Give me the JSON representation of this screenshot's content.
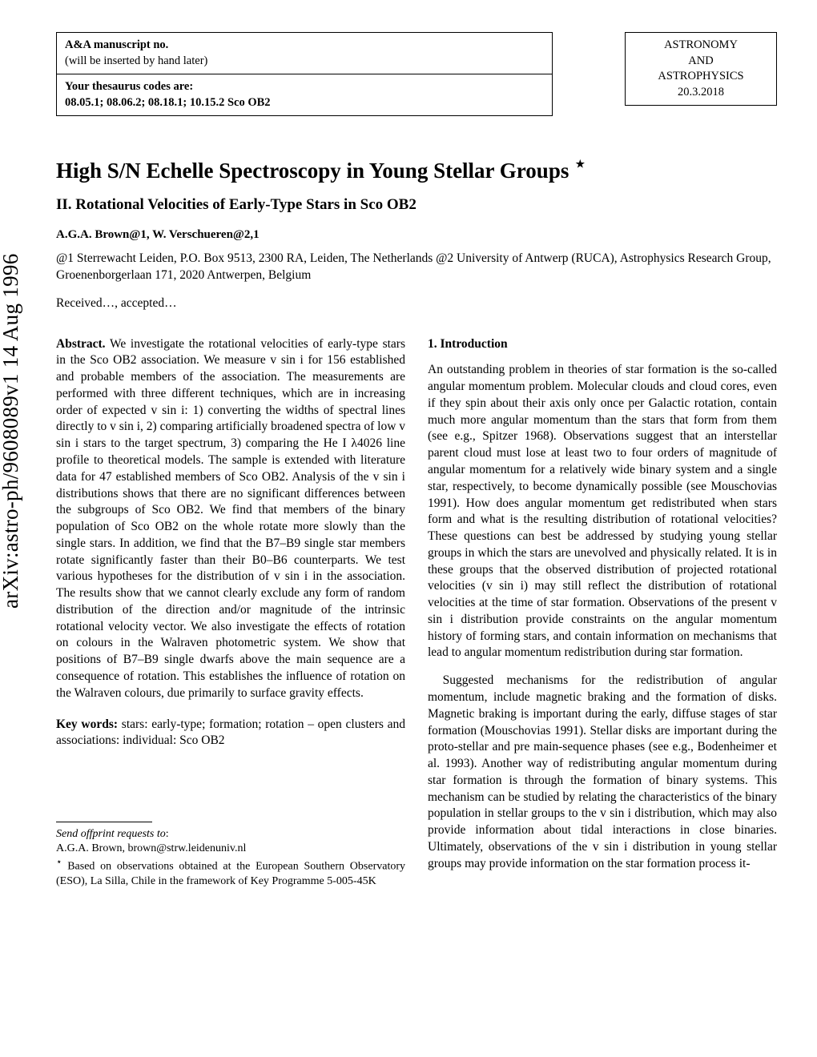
{
  "manuscript_box": {
    "line1": "A&A manuscript no.",
    "line2": "(will be inserted by hand later)",
    "line3": "Your thesaurus codes are:",
    "line4": "08.05.1; 08.06.2; 08.18.1; 10.15.2 Sco OB2"
  },
  "journal_box": {
    "line1": "ASTRONOMY",
    "line2": "AND",
    "line3": "ASTROPHYSICS",
    "date": "20.3.2018"
  },
  "arxiv": "arXiv:astro-ph/9608089v1  14 Aug 1996",
  "title": "High S/N Echelle Spectroscopy in Young Stellar Groups ",
  "title_star": "⋆",
  "subtitle": "II. Rotational Velocities of Early-Type Stars in Sco OB2",
  "authors": "A.G.A. Brown@1, W. Verschueren@2,1",
  "affiliations": "@1 Sterrewacht Leiden, P.O. Box 9513, 2300 RA, Leiden, The Netherlands @2 University of Antwerp (RUCA), Astrophysics Research Group, Groenenborgerlaan 171, 2020 Antwerpen, Belgium",
  "received": "Received…, accepted…",
  "abstract_label": "Abstract.",
  "abstract_text": " We investigate the rotational velocities of early-type stars in the Sco OB2 association. We measure v sin i for 156 established and probable members of the association. The measurements are performed with three different techniques, which are in increasing order of expected v sin i: 1) converting the widths of spectral lines directly to v sin i, 2) comparing artificially broadened spectra of low v sin i stars to the target spectrum, 3) comparing the He I λ4026 line profile to theoretical models. The sample is extended with literature data for 47 established members of Sco OB2. Analysis of the v sin i distributions shows that there are no significant differences between the subgroups of Sco OB2. We find that members of the binary population of Sco OB2 on the whole rotate more slowly than the single stars. In addition, we find that the B7–B9 single star members rotate significantly faster than their B0–B6 counterparts. We test various hypotheses for the distribution of v sin i in the association. The results show that we cannot clearly exclude any form of random distribution of the direction and/or magnitude of the intrinsic rotational velocity vector. We also investigate the effects of rotation on colours in the Walraven photometric system. We show that positions of B7–B9 single dwarfs above the main sequence are a consequence of rotation. This establishes the influence of rotation on the Walraven colours, due primarily to surface gravity effects.",
  "keywords_label": "Key words:",
  "keywords_text": " stars: early-type; formation; rotation – open clusters and associations: individual: Sco OB2",
  "section1_title": "1. Introduction",
  "intro_p1": "An outstanding problem in theories of star formation is the so-called angular momentum problem. Molecular clouds and cloud cores, even if they spin about their axis only once per Galactic rotation, contain much more angular momentum than the stars that form from them (see e.g., Spitzer 1968). Observations suggest that an interstellar parent cloud must lose at least two to four orders of magnitude of angular momentum for a relatively wide binary system and a single star, respectively, to become dynamically possible (see Mouschovias 1991). How does angular momentum get redistributed when stars form and what is the resulting distribution of rotational velocities? These questions can best be addressed by studying young stellar groups in which the stars are unevolved and physically related. It is in these groups that the observed distribution of projected rotational velocities (v sin i) may still reflect the distribution of rotational velocities at the time of star formation. Observations of the present v sin i distribution provide constraints on the angular momentum history of forming stars, and contain information on mechanisms that lead to angular momentum redistribution during star formation.",
  "intro_p2": "Suggested mechanisms for the redistribution of angular momentum, include magnetic braking and the formation of disks. Magnetic braking is important during the early, diffuse stages of star formation (Mouschovias 1991). Stellar disks are important during the proto-stellar and pre main-sequence phases (see e.g., Bodenheimer et al. 1993). Another way of redistributing angular momentum during star formation is through the formation of binary systems. This mechanism can be studied by relating the characteristics of the binary population in stellar groups to the v sin i distribution, which may also provide information about tidal interactions in close binaries. Ultimately, observations of the v sin i distribution in young stellar groups may provide information on the star formation process it-",
  "footnote_offprint_label": "Send offprint requests to",
  "footnote_offprint": ":",
  "footnote_email": "A.G.A. Brown, brown@strw.leidenuniv.nl",
  "footnote_star": "⋆",
  "footnote_obs": " Based on observations obtained at the European Southern Observatory (ESO), La Silla, Chile in the framework of Key Programme 5-005-45K"
}
